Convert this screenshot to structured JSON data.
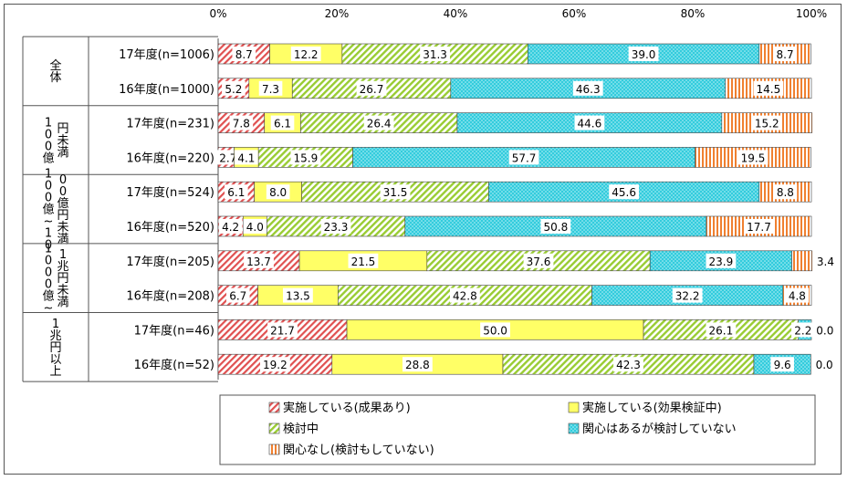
{
  "chart_data": {
    "type": "bar",
    "stacked": "percent",
    "orientation": "horizontal",
    "x_ticks": [
      "0%",
      "20%",
      "40%",
      "60%",
      "80%",
      "100%"
    ],
    "xlim": [
      0,
      100
    ],
    "grid": false,
    "legend_position": "bottom",
    "groups": [
      {
        "label": "全体",
        "rows": [
          "17年度(n=1006)",
          "16年度(n=1000)"
        ]
      },
      {
        "label": "100億円未満",
        "rows": [
          "17年度(n=231)",
          "16年度(n=220)"
        ]
      },
      {
        "label": "100億~1000億円未満",
        "rows": [
          "17年度(n=524)",
          "16年度(n=520)"
        ]
      },
      {
        "label": "1000億~1兆円未満",
        "rows": [
          "17年度(n=205)",
          "16年度(n=208)"
        ]
      },
      {
        "label": "1兆円以上",
        "rows": [
          "17年度(n=46)",
          "16年度(n=52)"
        ]
      }
    ],
    "categories": [
      "17年度(n=1006)",
      "16年度(n=1000)",
      "17年度(n=231)",
      "16年度(n=220)",
      "17年度(n=524)",
      "16年度(n=520)",
      "17年度(n=205)",
      "16年度(n=208)",
      "17年度(n=46)",
      "16年度(n=52)"
    ],
    "series": [
      {
        "name": "実施している(成果あり)",
        "color": "#e05050",
        "pattern": "diagonal-hatch-red",
        "values": [
          8.7,
          5.2,
          7.8,
          2.7,
          6.1,
          4.2,
          13.7,
          6.7,
          21.7,
          19.2
        ]
      },
      {
        "name": "実施している(効果検証中)",
        "color": "#ffff66",
        "pattern": "solid-yellow",
        "values": [
          12.2,
          7.3,
          6.1,
          4.1,
          8.0,
          4.0,
          21.5,
          13.5,
          50.0,
          28.8
        ]
      },
      {
        "name": "検討中",
        "color": "#99cc33",
        "pattern": "diagonal-hatch-green",
        "values": [
          31.3,
          26.7,
          26.4,
          15.9,
          31.5,
          23.3,
          37.6,
          42.8,
          26.1,
          42.3
        ]
      },
      {
        "name": "関心はあるが検討していない",
        "color": "#33ccdd",
        "pattern": "dotted-cyan",
        "values": [
          39.0,
          46.3,
          44.6,
          57.7,
          45.6,
          50.8,
          23.9,
          32.2,
          2.2,
          9.6
        ]
      },
      {
        "name": "関心なし(検討もしていない)",
        "color": "#f08030",
        "pattern": "vertical-stripe-orange",
        "values": [
          8.7,
          14.5,
          15.2,
          19.5,
          8.8,
          17.7,
          3.4,
          4.8,
          0.0,
          0.0
        ]
      }
    ]
  }
}
